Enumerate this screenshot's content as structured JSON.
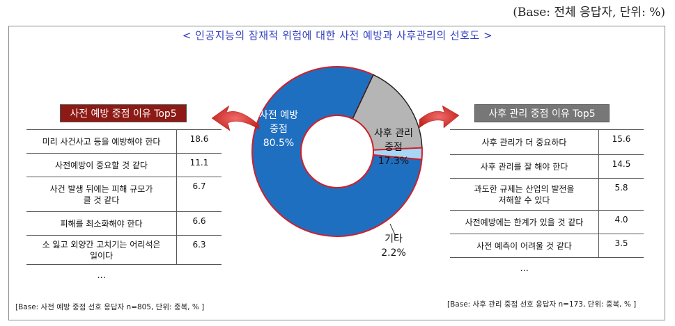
{
  "base_label": "(Base: 전체 응답자, 단위: %)",
  "chart_title": "< 인공지능의 잠재적 위험에 대한 사전 예방과 사후관리의 선호도 >",
  "chart_data": {
    "type": "pie",
    "title": "인공지능의 잠재적 위험에 대한 사전 예방과 사후관리의 선호도",
    "unit": "%",
    "slices": [
      {
        "label": "사전 예방 중점",
        "value": 80.5,
        "color": "#1f6fc0"
      },
      {
        "label": "사후 관리 중점",
        "value": 17.3,
        "color": "#b5b5b5"
      },
      {
        "label": "기타",
        "value": 2.2,
        "color": "#a7d7f5"
      }
    ],
    "slice_label_lines": [
      {
        "line1": "사전 예방",
        "line2": "중점",
        "value_text": "80.5%"
      },
      {
        "line1": "사후 관리",
        "line2": "중점",
        "value_text": "17.3%"
      },
      {
        "line1": "기타",
        "line2": "",
        "value_text": "2.2%"
      }
    ]
  },
  "left_panel": {
    "title": "사전 예방 중점 이유 Top5",
    "rows": [
      {
        "lines": [
          "미리 사건사고 등을 예방해야 한다"
        ],
        "value": "18.6"
      },
      {
        "lines": [
          "사전예방이 중요할 것 같다"
        ],
        "value": "11.1"
      },
      {
        "lines": [
          "사건 발생 뒤에는 피해 규모가",
          "클 것 같다"
        ],
        "value": "6.7"
      },
      {
        "lines": [
          "피해를 최소화해야 한다"
        ],
        "value": "6.6"
      },
      {
        "lines": [
          "소 잃고 외양간 고치기는 어리석은",
          "일이다"
        ],
        "value": "6.3"
      }
    ],
    "more": "...",
    "footnote": "[Base: 사전 예방 중점 선호 응답자 n=805, 단위: 중복, % ]"
  },
  "right_panel": {
    "title": "사후 관리 중점 이유  Top5",
    "rows": [
      {
        "lines": [
          "사후 관리가 더 중요하다"
        ],
        "value": "15.6"
      },
      {
        "lines": [
          "사후 관리를 잘 해야 한다"
        ],
        "value": "14.5"
      },
      {
        "lines": [
          "과도한 규제는 산업의 발전을",
          "저해할 수 있다"
        ],
        "value": "5.8"
      },
      {
        "lines": [
          "사전예방에는 한계가 있을 것 같다"
        ],
        "value": "4.0"
      },
      {
        "lines": [
          "사전 예측이 어려울 것 같다"
        ],
        "value": "3.5"
      }
    ],
    "more": "...",
    "footnote": "[Base: 사후 관리 중점 선호 응답자 n=173, 단위: 중복, % ]"
  },
  "colors": {
    "title": "#2f3ec1",
    "left_header": "#8d1a14",
    "right_header": "#777777",
    "arrow": "#c0201a",
    "slice_border": "#d0202a"
  }
}
